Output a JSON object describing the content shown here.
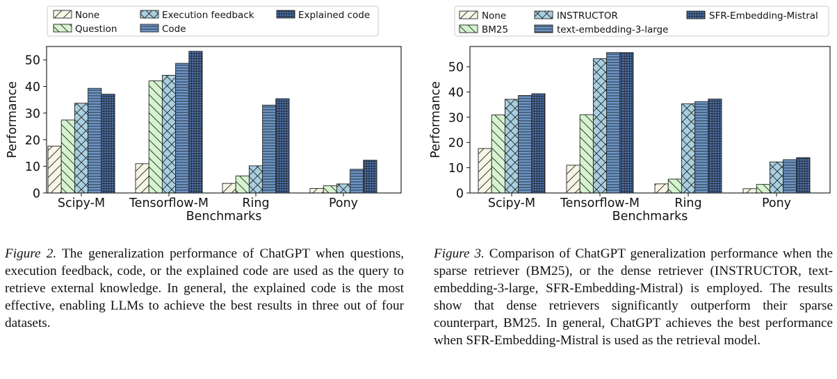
{
  "chart_data": [
    {
      "type": "bar",
      "xlabel": "Benchmarks",
      "ylabel": "Performance",
      "ylim": [
        0,
        55
      ],
      "yticks": [
        0,
        10,
        20,
        30,
        40,
        50
      ],
      "grid": false,
      "legend_placement": "top",
      "categories": [
        "Scipy-M",
        "Tensorflow-M",
        "Ring",
        "Pony"
      ],
      "series": [
        {
          "name": "None",
          "color": "#f7f6e6",
          "hatch": "diagonal",
          "values": [
            17.6,
            11.0,
            3.6,
            1.7
          ]
        },
        {
          "name": "Question",
          "color": "#d5f3cf",
          "hatch": "backdiagonal",
          "values": [
            27.4,
            42.1,
            6.4,
            2.7
          ]
        },
        {
          "name": "Execution feedback",
          "color": "#a8cfe0",
          "hatch": "cross",
          "values": [
            33.7,
            44.2,
            10.2,
            3.4
          ]
        },
        {
          "name": "Code",
          "color": "#6c96c8",
          "hatch": "horizontal",
          "values": [
            39.3,
            48.7,
            33.0,
            8.9
          ]
        },
        {
          "name": "Explained code",
          "color": "#4a73b1",
          "hatch": "grid",
          "values": [
            37.1,
            53.2,
            35.4,
            12.3
          ]
        }
      ]
    },
    {
      "type": "bar",
      "xlabel": "Benchmarks",
      "ylabel": "Performance",
      "ylim": [
        0,
        58
      ],
      "yticks": [
        0,
        10,
        20,
        30,
        40,
        50
      ],
      "grid": false,
      "legend_placement": "top",
      "categories": [
        "Scipy-M",
        "Tensorflow-M",
        "Ring",
        "Pony"
      ],
      "series": [
        {
          "name": "None",
          "color": "#f7f6e6",
          "hatch": "diagonal",
          "values": [
            17.6,
            11.0,
            3.6,
            1.7
          ]
        },
        {
          "name": "BM25",
          "color": "#d5f3cf",
          "hatch": "backdiagonal",
          "values": [
            30.9,
            31.0,
            5.5,
            3.4
          ]
        },
        {
          "name": "INSTRUCTOR",
          "color": "#a8cfe0",
          "hatch": "cross",
          "values": [
            37.1,
            53.2,
            35.3,
            12.3
          ]
        },
        {
          "name": "text-embedding-3-large",
          "color": "#6c96c8",
          "hatch": "horizontal",
          "values": [
            38.6,
            55.6,
            36.2,
            13.2
          ]
        },
        {
          "name": "SFR-Embedding-Mistral",
          "color": "#4a73b1",
          "hatch": "grid",
          "values": [
            39.3,
            55.6,
            37.2,
            14.0
          ]
        }
      ]
    }
  ],
  "captions": {
    "left_label": "Figure 2.",
    "left_text": " The generalization performance of ChatGPT when questions, execution feedback, code, or the explained code are used as the query to retrieve external knowledge. In general, the explained code is the most effective, enabling LLMs to achieve the best results in three out of four datasets.",
    "right_label": "Figure 3.",
    "right_text": " Comparison of ChatGPT generalization performance when the sparse retriever (BM25), or the dense retriever (INSTRUCTOR, text-embedding-3-large, SFR-Embedding-Mistral) is employed. The results show that dense retrievers significantly outperform their sparse counterpart, BM25. In general, ChatGPT achieves the best performance when SFR-Embedding-Mistral is used as the retrieval model."
  }
}
